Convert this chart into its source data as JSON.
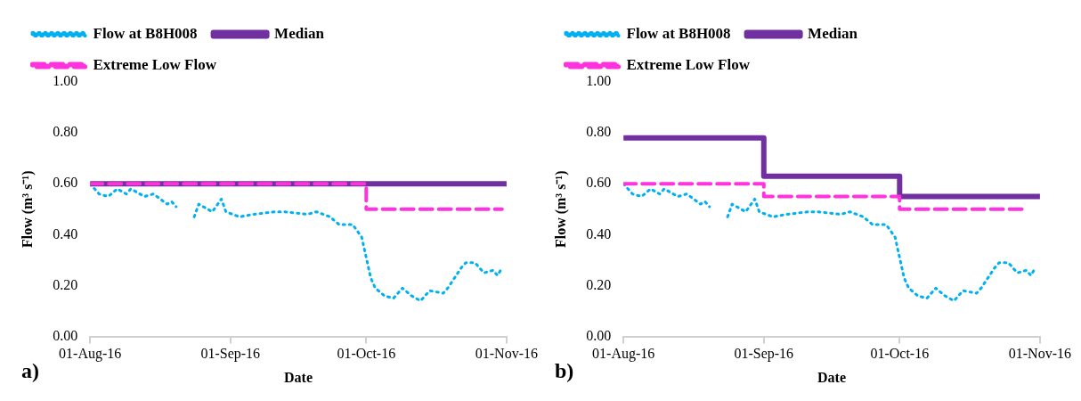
{
  "chart_data": [
    {
      "type": "line",
      "xlabel": "Date",
      "ylabel": "Flow (m³ s⁻¹)",
      "annotations": [
        "a)"
      ],
      "xlim": [
        "2016-08-01",
        "2016-11-01"
      ],
      "xticks": [
        {
          "value": "2016-08-01",
          "label": "01-Aug-16"
        },
        {
          "value": "2016-09-01",
          "label": "01-Sep-16"
        },
        {
          "value": "2016-10-01",
          "label": "01-Oct-16"
        },
        {
          "value": "2016-11-01",
          "label": "01-Nov-16"
        }
      ],
      "ylim": [
        0,
        1
      ],
      "yticks": [
        {
          "value": 0,
          "label": "0.00"
        },
        {
          "value": 0.2,
          "label": "0.20"
        },
        {
          "value": 0.4,
          "label": "0.40"
        },
        {
          "value": 0.6,
          "label": "0.60"
        },
        {
          "value": 0.8,
          "label": "0.80"
        },
        {
          "value": 1,
          "label": "1.00"
        }
      ],
      "grid": false,
      "legend": "top",
      "marker": "none",
      "series": [
        {
          "name": "Flow at B8H008",
          "color": "#00b0f0",
          "line_style": "dotted",
          "x": [
            "2016-08-01",
            "2016-08-03",
            "2016-08-05",
            "2016-08-07",
            "2016-08-09",
            "2016-08-10",
            "2016-08-13",
            "2016-08-15",
            "2016-08-18",
            "2016-08-19",
            "2016-08-20",
            "2016-08-22",
            "2016-08-24",
            "2016-08-25",
            "2016-08-28",
            "2016-08-30",
            "2016-08-31",
            "2016-09-03",
            "2016-09-06",
            "2016-09-11",
            "2016-09-13",
            "2016-09-18",
            "2016-09-20",
            "2016-09-23",
            "2016-09-25",
            "2016-09-28",
            "2016-09-30",
            "2016-10-01",
            "2016-10-02",
            "2016-10-03",
            "2016-10-05",
            "2016-10-07",
            "2016-10-09",
            "2016-10-11",
            "2016-10-13",
            "2016-10-15",
            "2016-10-18",
            "2016-10-19",
            "2016-10-22",
            "2016-10-23",
            "2016-10-25",
            "2016-10-27",
            "2016-10-29",
            "2016-10-30",
            "2016-10-31"
          ],
          "values": [
            0.6,
            0.56,
            0.55,
            0.58,
            0.56,
            0.58,
            0.55,
            0.56,
            0.52,
            0.53,
            0.51,
            null,
            0.47,
            0.52,
            0.49,
            0.54,
            0.49,
            0.47,
            0.48,
            0.49,
            0.49,
            0.48,
            0.49,
            0.47,
            0.44,
            0.44,
            0.39,
            0.31,
            0.23,
            0.19,
            0.16,
            0.15,
            0.19,
            0.16,
            0.14,
            0.18,
            0.17,
            0.19,
            0.27,
            0.29,
            0.29,
            0.25,
            0.26,
            0.24,
            0.27
          ]
        },
        {
          "name": "Median",
          "type": "step",
          "color": "#7030a0",
          "line_style": "solid",
          "x": [
            "2016-08-01",
            "2016-11-01"
          ],
          "values": [
            0.6,
            0.6
          ]
        },
        {
          "name": "Extreme Low Flow",
          "type": "step",
          "color": "#ff33dd",
          "line_style": "dashed",
          "x": [
            "2016-08-01",
            "2016-10-01",
            "2016-10-31"
          ],
          "values": [
            0.6,
            0.5,
            0.5
          ]
        }
      ]
    },
    {
      "type": "line",
      "xlabel": "Date",
      "ylabel": "Flow (m³ s⁻¹)",
      "annotations": [
        "b)"
      ],
      "xlim": [
        "2016-08-01",
        "2016-11-01"
      ],
      "xticks": [
        {
          "value": "2016-08-01",
          "label": "01-Aug-16"
        },
        {
          "value": "2016-09-01",
          "label": "01-Sep-16"
        },
        {
          "value": "2016-10-01",
          "label": "01-Oct-16"
        },
        {
          "value": "2016-11-01",
          "label": "01-Nov-16"
        }
      ],
      "ylim": [
        0,
        1
      ],
      "yticks": [
        {
          "value": 0,
          "label": "0.00"
        },
        {
          "value": 0.2,
          "label": "0.20"
        },
        {
          "value": 0.4,
          "label": "0.40"
        },
        {
          "value": 0.6,
          "label": "0.60"
        },
        {
          "value": 0.8,
          "label": "0.80"
        },
        {
          "value": 1,
          "label": "1.00"
        }
      ],
      "grid": false,
      "legend": "top",
      "marker": "none",
      "series": [
        {
          "name": "Flow at B8H008",
          "color": "#00b0f0",
          "line_style": "dotted",
          "x": [
            "2016-08-01",
            "2016-08-03",
            "2016-08-05",
            "2016-08-07",
            "2016-08-09",
            "2016-08-10",
            "2016-08-13",
            "2016-08-15",
            "2016-08-18",
            "2016-08-19",
            "2016-08-20",
            "2016-08-22",
            "2016-08-24",
            "2016-08-25",
            "2016-08-28",
            "2016-08-30",
            "2016-08-31",
            "2016-09-03",
            "2016-09-06",
            "2016-09-11",
            "2016-09-13",
            "2016-09-18",
            "2016-09-20",
            "2016-09-23",
            "2016-09-25",
            "2016-09-28",
            "2016-09-30",
            "2016-10-01",
            "2016-10-02",
            "2016-10-03",
            "2016-10-05",
            "2016-10-07",
            "2016-10-09",
            "2016-10-11",
            "2016-10-13",
            "2016-10-15",
            "2016-10-18",
            "2016-10-19",
            "2016-10-22",
            "2016-10-23",
            "2016-10-25",
            "2016-10-27",
            "2016-10-29",
            "2016-10-30",
            "2016-10-31"
          ],
          "values": [
            0.6,
            0.56,
            0.55,
            0.58,
            0.56,
            0.58,
            0.55,
            0.56,
            0.52,
            0.53,
            0.51,
            null,
            0.47,
            0.52,
            0.49,
            0.54,
            0.49,
            0.47,
            0.48,
            0.49,
            0.49,
            0.48,
            0.49,
            0.47,
            0.44,
            0.44,
            0.39,
            0.31,
            0.23,
            0.19,
            0.16,
            0.15,
            0.19,
            0.16,
            0.14,
            0.18,
            0.17,
            0.19,
            0.27,
            0.29,
            0.29,
            0.25,
            0.26,
            0.24,
            0.27
          ]
        },
        {
          "name": "Median",
          "type": "step",
          "color": "#7030a0",
          "line_style": "solid",
          "x": [
            "2016-08-01",
            "2016-09-01",
            "2016-10-01",
            "2016-11-01"
          ],
          "values": [
            0.78,
            0.63,
            0.55,
            0.55
          ]
        },
        {
          "name": "Extreme Low Flow",
          "type": "step",
          "color": "#ff33dd",
          "line_style": "dashed",
          "x": [
            "2016-08-01",
            "2016-09-01",
            "2016-10-01",
            "2016-10-28"
          ],
          "values": [
            0.6,
            0.55,
            0.5,
            0.5
          ]
        }
      ]
    }
  ]
}
